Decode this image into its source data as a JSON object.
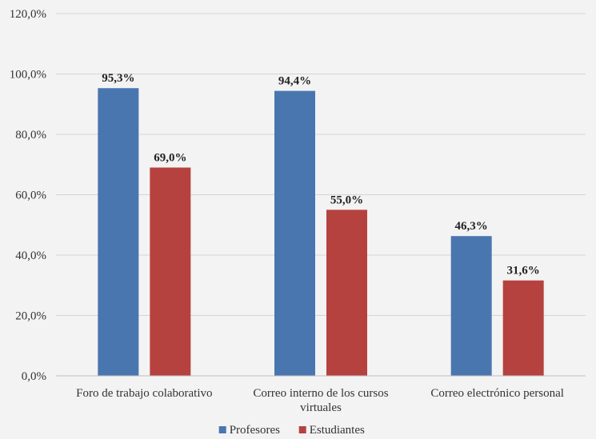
{
  "chart_data": {
    "type": "bar",
    "categories": [
      [
        "Foro de trabajo colaborativo"
      ],
      [
        "Correo interno de los cursos",
        "virtuales"
      ],
      [
        "Correo electrónico personal"
      ]
    ],
    "series": [
      {
        "name": "Profesores",
        "values": [
          95.3,
          94.4,
          46.3
        ],
        "labels": [
          "95,3%",
          "94,4%",
          "46,3%"
        ],
        "color": "#4a76b0"
      },
      {
        "name": "Estudiantes",
        "values": [
          69.0,
          55.0,
          31.6
        ],
        "labels": [
          "69,0%",
          "55,0%",
          "31,6%"
        ],
        "color": "#b6423f"
      }
    ],
    "ylim": [
      0,
      120
    ],
    "yticks": [
      0,
      20,
      40,
      60,
      80,
      100,
      120
    ],
    "ytick_labels": [
      "0,0%",
      "20,0%",
      "40,0%",
      "60,0%",
      "80,0%",
      "100,0%",
      "120,0%"
    ],
    "grid": true,
    "grid_color": "#d4d4d4",
    "legend": "bottom-center"
  }
}
